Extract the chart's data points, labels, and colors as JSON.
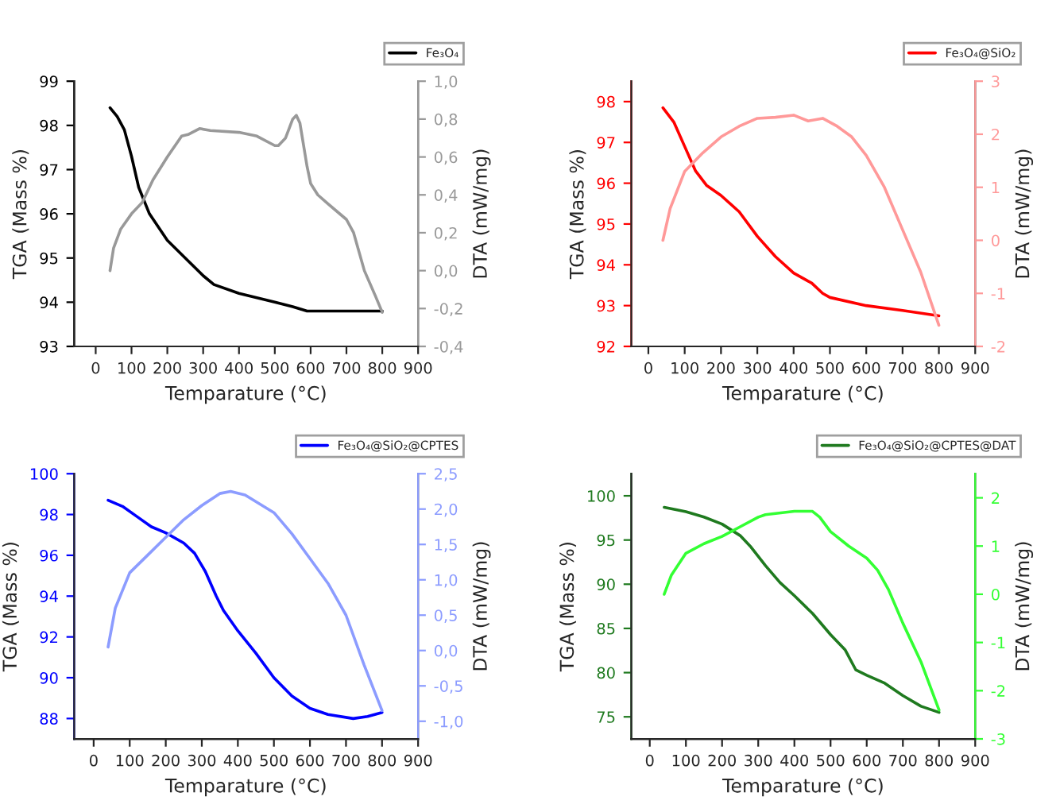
{
  "chart_data": [
    {
      "type": "line",
      "xlabel": "Temparature (°C)",
      "ylabel": "TGA (Mass %)",
      "y2label": "DTA (mW/mg)",
      "legend": "top right",
      "grid": false,
      "xlim": [
        -60,
        900
      ],
      "xticks": [
        0,
        100,
        200,
        300,
        400,
        500,
        600,
        700,
        800,
        900
      ],
      "ylim": [
        93,
        99
      ],
      "yticks": [
        93,
        94,
        95,
        96,
        97,
        98,
        99
      ],
      "y2lim": [
        -0.4,
        1.0
      ],
      "y2ticks": [
        {
          "value": -0.4,
          "label": "-0,4"
        },
        {
          "value": -0.2,
          "label": "-0,2"
        },
        {
          "value": 0.0,
          "label": "0,0"
        },
        {
          "value": 0.2,
          "label": "0,2"
        },
        {
          "value": 0.4,
          "label": "0,4"
        },
        {
          "value": 0.6,
          "label": "0,6"
        },
        {
          "value": 0.8,
          "label": "0,8"
        },
        {
          "value": 1.0,
          "label": "1,0"
        }
      ],
      "series": [
        {
          "name": "Fe₃O₄",
          "color": "#000000",
          "x": [
            40,
            60,
            80,
            100,
            120,
            150,
            200,
            250,
            300,
            330,
            400,
            500,
            550,
            590,
            650,
            800
          ],
          "values": [
            98.4,
            98.2,
            97.9,
            97.3,
            96.6,
            96.0,
            95.4,
            95.0,
            94.6,
            94.4,
            94.2,
            94.0,
            93.9,
            93.8,
            93.8,
            93.8
          ]
        },
        {
          "axis": "y2",
          "color": "#999999",
          "x": [
            40,
            50,
            70,
            100,
            130,
            160,
            200,
            240,
            260,
            290,
            320,
            400,
            450,
            500,
            510,
            530,
            550,
            560,
            570,
            590,
            600,
            620,
            650,
            700,
            720,
            750,
            780,
            800
          ],
          "values": [
            0.0,
            0.12,
            0.22,
            0.3,
            0.36,
            0.48,
            0.6,
            0.71,
            0.72,
            0.75,
            0.74,
            0.73,
            0.71,
            0.66,
            0.66,
            0.7,
            0.8,
            0.82,
            0.78,
            0.55,
            0.46,
            0.4,
            0.35,
            0.27,
            0.2,
            0.0,
            -0.13,
            -0.22
          ]
        }
      ]
    },
    {
      "type": "line",
      "xlabel": "Temparature (°C)",
      "ylabel": "TGA (Mass %)",
      "y2label": "DTA (mW/mg)",
      "legend": "top right",
      "grid": false,
      "xlim": [
        -47,
        900
      ],
      "xticks": [
        0,
        100,
        200,
        300,
        400,
        500,
        600,
        700,
        800,
        900
      ],
      "ylim": [
        92,
        98.5
      ],
      "yticks": [
        92,
        93,
        94,
        95,
        96,
        97,
        98
      ],
      "y2lim": [
        -2,
        3
      ],
      "y2ticks": [
        -2,
        -1,
        0,
        1,
        2,
        3
      ],
      "series": [
        {
          "name": "Fe₃O₄@SiO₂",
          "color": "#ff0000",
          "x": [
            40,
            70,
            100,
            130,
            160,
            200,
            250,
            300,
            350,
            400,
            450,
            480,
            500,
            600,
            700,
            800
          ],
          "values": [
            97.85,
            97.5,
            96.9,
            96.3,
            95.95,
            95.7,
            95.3,
            94.7,
            94.2,
            93.8,
            93.55,
            93.3,
            93.2,
            93.0,
            92.88,
            92.75
          ]
        },
        {
          "axis": "y2",
          "color": "#ff9999",
          "x": [
            40,
            60,
            100,
            150,
            200,
            250,
            300,
            350,
            400,
            440,
            480,
            520,
            560,
            600,
            650,
            700,
            750,
            780,
            800
          ],
          "values": [
            0.0,
            0.6,
            1.3,
            1.65,
            1.95,
            2.15,
            2.3,
            2.32,
            2.36,
            2.25,
            2.3,
            2.15,
            1.95,
            1.6,
            1.0,
            0.2,
            -0.6,
            -1.2,
            -1.6
          ]
        }
      ]
    },
    {
      "type": "line",
      "xlabel": "Temparature (°C)",
      "ylabel": "TGA (Mass %)",
      "y2label": "DTA (mW/mg)",
      "legend": "top right",
      "grid": false,
      "xlim": [
        -54,
        900
      ],
      "xticks": [
        0,
        100,
        200,
        300,
        400,
        500,
        600,
        700,
        800,
        900
      ],
      "ylim": [
        87,
        100
      ],
      "yticks": [
        88,
        90,
        92,
        94,
        96,
        98,
        100
      ],
      "y2lim": [
        -1.25,
        2.5
      ],
      "y2ticks": [
        {
          "value": -1.0,
          "label": "-1,0"
        },
        {
          "value": -0.5,
          "label": "-0,5"
        },
        {
          "value": 0.0,
          "label": "0,0"
        },
        {
          "value": 0.5,
          "label": "0,5"
        },
        {
          "value": 1.0,
          "label": "1,0"
        },
        {
          "value": 1.5,
          "label": "1,5"
        },
        {
          "value": 2.0,
          "label": "2,0"
        },
        {
          "value": 2.5,
          "label": "2,5"
        }
      ],
      "series": [
        {
          "name": "Fe₃O₄@SiO₂@CPTES",
          "color": "#0000ff",
          "x": [
            40,
            80,
            120,
            160,
            200,
            250,
            280,
            310,
            340,
            360,
            400,
            450,
            500,
            550,
            600,
            650,
            720,
            760,
            800
          ],
          "values": [
            98.7,
            98.4,
            97.9,
            97.4,
            97.1,
            96.6,
            96.1,
            95.2,
            94.0,
            93.3,
            92.3,
            91.2,
            90.0,
            89.1,
            88.5,
            88.2,
            88.0,
            88.1,
            88.3
          ]
        },
        {
          "axis": "y2",
          "color": "#8c9cff",
          "x": [
            40,
            60,
            100,
            150,
            200,
            250,
            300,
            350,
            380,
            420,
            500,
            550,
            600,
            650,
            700,
            750,
            800
          ],
          "values": [
            0.05,
            0.6,
            1.1,
            1.35,
            1.6,
            1.85,
            2.05,
            2.22,
            2.25,
            2.2,
            1.95,
            1.65,
            1.3,
            0.95,
            0.5,
            -0.2,
            -0.85
          ]
        }
      ]
    },
    {
      "type": "line",
      "xlabel": "Temparature (°C)",
      "ylabel": "TGA (Mass %)",
      "y2label": "DTA (mW/mg)",
      "legend": "top right",
      "grid": false,
      "xlim": [
        -51,
        900
      ],
      "xticks": [
        0,
        100,
        200,
        300,
        400,
        500,
        600,
        700,
        800,
        900
      ],
      "ylim": [
        72.5,
        102.5
      ],
      "yticks": [
        75,
        80,
        85,
        90,
        95,
        100
      ],
      "y2lim": [
        -3,
        2.5
      ],
      "y2ticks": [
        -3,
        -2,
        -1,
        0,
        1,
        2
      ],
      "series": [
        {
          "name": "Fe₃O₄@SiO₂@CPTES@DAT",
          "color": "#1f7a1f",
          "x": [
            40,
            100,
            150,
            200,
            250,
            280,
            320,
            360,
            400,
            450,
            500,
            540,
            570,
            600,
            650,
            700,
            750,
            800
          ],
          "values": [
            98.7,
            98.2,
            97.6,
            96.8,
            95.5,
            94.2,
            92.1,
            90.2,
            88.7,
            86.7,
            84.3,
            82.6,
            80.3,
            79.7,
            78.8,
            77.4,
            76.2,
            75.5
          ]
        },
        {
          "axis": "y2",
          "color": "#33ff33",
          "x": [
            40,
            60,
            100,
            150,
            200,
            250,
            300,
            320,
            400,
            450,
            470,
            500,
            550,
            600,
            630,
            660,
            700,
            750,
            800
          ],
          "values": [
            0.0,
            0.4,
            0.85,
            1.05,
            1.2,
            1.4,
            1.6,
            1.65,
            1.72,
            1.72,
            1.6,
            1.3,
            1.0,
            0.75,
            0.5,
            0.1,
            -0.6,
            -1.4,
            -2.4
          ]
        }
      ]
    }
  ]
}
